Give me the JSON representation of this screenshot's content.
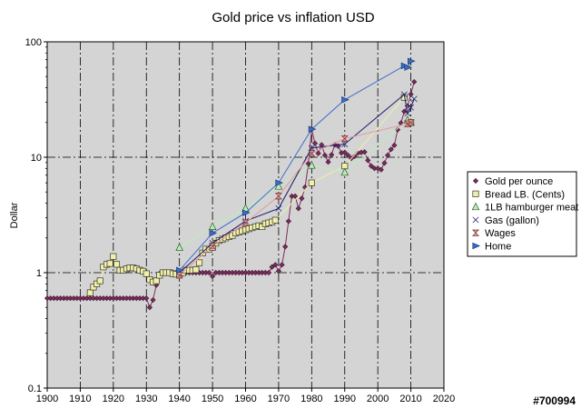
{
  "watermark": "#700994",
  "chart_data": {
    "type": "line",
    "title": "Gold price vs inflation USD",
    "xlabel": "",
    "ylabel": "Dollar",
    "y_scale": "log",
    "xlim": [
      1900,
      2020
    ],
    "ylim": [
      0.1,
      100
    ],
    "x_ticks": [
      1900,
      1910,
      1920,
      1930,
      1940,
      1950,
      1960,
      1970,
      1980,
      1990,
      2000,
      2010,
      2020
    ],
    "y_ticks": [
      0.1,
      1,
      10,
      100
    ],
    "y_tick_labels": [
      "0.1",
      "1",
      "10",
      "100"
    ],
    "grid": true,
    "plot_background": "#d4d4d4",
    "legend_position": "right",
    "series": [
      {
        "name": "Gold per ounce",
        "color": "#7b2d5e",
        "marker": "diamond",
        "points": [
          [
            1900,
            0.6
          ],
          [
            1901,
            0.6
          ],
          [
            1902,
            0.6
          ],
          [
            1903,
            0.6
          ],
          [
            1904,
            0.6
          ],
          [
            1905,
            0.6
          ],
          [
            1906,
            0.6
          ],
          [
            1907,
            0.6
          ],
          [
            1908,
            0.6
          ],
          [
            1909,
            0.6
          ],
          [
            1910,
            0.6
          ],
          [
            1911,
            0.6
          ],
          [
            1912,
            0.6
          ],
          [
            1913,
            0.6
          ],
          [
            1914,
            0.6
          ],
          [
            1915,
            0.6
          ],
          [
            1916,
            0.6
          ],
          [
            1917,
            0.6
          ],
          [
            1918,
            0.6
          ],
          [
            1919,
            0.6
          ],
          [
            1920,
            0.6
          ],
          [
            1921,
            0.6
          ],
          [
            1922,
            0.6
          ],
          [
            1923,
            0.6
          ],
          [
            1924,
            0.6
          ],
          [
            1925,
            0.6
          ],
          [
            1926,
            0.6
          ],
          [
            1927,
            0.6
          ],
          [
            1928,
            0.6
          ],
          [
            1929,
            0.6
          ],
          [
            1930,
            0.6
          ],
          [
            1931,
            0.5
          ],
          [
            1932,
            0.58
          ],
          [
            1933,
            0.78
          ],
          [
            1934,
            0.98
          ],
          [
            1935,
            1.0
          ],
          [
            1936,
            1.0
          ],
          [
            1937,
            1.0
          ],
          [
            1938,
            1.0
          ],
          [
            1939,
            1.0
          ],
          [
            1940,
            1.0
          ],
          [
            1941,
            1.0
          ],
          [
            1942,
            1.0
          ],
          [
            1943,
            1.0
          ],
          [
            1944,
            1.0
          ],
          [
            1945,
            1.0
          ],
          [
            1946,
            1.0
          ],
          [
            1947,
            1.0
          ],
          [
            1948,
            1.0
          ],
          [
            1949,
            1.0
          ],
          [
            1950,
            0.93
          ],
          [
            1951,
            1.0
          ],
          [
            1952,
            1.0
          ],
          [
            1953,
            1.0
          ],
          [
            1954,
            1.0
          ],
          [
            1955,
            1.0
          ],
          [
            1956,
            1.0
          ],
          [
            1957,
            1.0
          ],
          [
            1958,
            1.0
          ],
          [
            1959,
            1.0
          ],
          [
            1960,
            1.0
          ],
          [
            1961,
            1.0
          ],
          [
            1962,
            1.0
          ],
          [
            1963,
            1.0
          ],
          [
            1964,
            1.0
          ],
          [
            1965,
            1.0
          ],
          [
            1966,
            1.0
          ],
          [
            1967,
            1.0
          ],
          [
            1968,
            1.12
          ],
          [
            1969,
            1.17
          ],
          [
            1970,
            1.03
          ],
          [
            1971,
            1.17
          ],
          [
            1972,
            1.68
          ],
          [
            1973,
            2.79
          ],
          [
            1974,
            4.6
          ],
          [
            1975,
            4.6
          ],
          [
            1976,
            3.6
          ],
          [
            1977,
            4.4
          ],
          [
            1978,
            5.5
          ],
          [
            1979,
            8.8
          ],
          [
            1980,
            17.5
          ],
          [
            1981,
            13.2
          ],
          [
            1982,
            10.8
          ],
          [
            1983,
            12.8
          ],
          [
            1984,
            10.4
          ],
          [
            1985,
            9.1
          ],
          [
            1986,
            10.5
          ],
          [
            1987,
            12.8
          ],
          [
            1988,
            12.5
          ],
          [
            1989,
            10.9
          ],
          [
            1990,
            11.0
          ],
          [
            1991,
            10.4
          ],
          [
            1992,
            9.8
          ],
          [
            1993,
            10.2
          ],
          [
            1994,
            10.9
          ],
          [
            1995,
            11.0
          ],
          [
            1996,
            11.1
          ],
          [
            1997,
            9.4
          ],
          [
            1998,
            8.4
          ],
          [
            1999,
            8.0
          ],
          [
            2000,
            8.0
          ],
          [
            2001,
            7.8
          ],
          [
            2002,
            8.9
          ],
          [
            2003,
            10.4
          ],
          [
            2004,
            11.7
          ],
          [
            2005,
            12.7
          ],
          [
            2006,
            17.3
          ],
          [
            2007,
            19.8
          ],
          [
            2008,
            24.9
          ],
          [
            2009,
            27.8
          ],
          [
            2010,
            35.1
          ],
          [
            2011,
            45.0
          ]
        ]
      },
      {
        "name": "Bread LB. (Cents)",
        "color": "#f0f0a8",
        "marker": "square",
        "points": [
          [
            1913,
            0.67
          ],
          [
            1914,
            0.75
          ],
          [
            1915,
            0.8
          ],
          [
            1916,
            0.85
          ],
          [
            1917,
            1.12
          ],
          [
            1918,
            1.18
          ],
          [
            1919,
            1.2
          ],
          [
            1920,
            1.38
          ],
          [
            1921,
            1.18
          ],
          [
            1922,
            1.05
          ],
          [
            1923,
            1.05
          ],
          [
            1924,
            1.08
          ],
          [
            1925,
            1.1
          ],
          [
            1926,
            1.1
          ],
          [
            1927,
            1.08
          ],
          [
            1928,
            1.05
          ],
          [
            1929,
            1.03
          ],
          [
            1930,
            0.98
          ],
          [
            1931,
            0.87
          ],
          [
            1932,
            0.83
          ],
          [
            1933,
            0.85
          ],
          [
            1934,
            0.95
          ],
          [
            1935,
            1.0
          ],
          [
            1936,
            1.0
          ],
          [
            1937,
            1.0
          ],
          [
            1938,
            0.98
          ],
          [
            1939,
            0.97
          ],
          [
            1940,
            0.97
          ],
          [
            1941,
            1.0
          ],
          [
            1942,
            1.05
          ],
          [
            1943,
            1.05
          ],
          [
            1944,
            1.05
          ],
          [
            1945,
            1.06
          ],
          [
            1946,
            1.22
          ],
          [
            1947,
            1.48
          ],
          [
            1948,
            1.6
          ],
          [
            1949,
            1.6
          ],
          [
            1950,
            1.65
          ],
          [
            1951,
            1.8
          ],
          [
            1952,
            1.9
          ],
          [
            1953,
            1.95
          ],
          [
            1954,
            2.0
          ],
          [
            1955,
            2.05
          ],
          [
            1956,
            2.1
          ],
          [
            1957,
            2.2
          ],
          [
            1958,
            2.25
          ],
          [
            1959,
            2.3
          ],
          [
            1960,
            2.35
          ],
          [
            1961,
            2.4
          ],
          [
            1962,
            2.45
          ],
          [
            1963,
            2.5
          ],
          [
            1964,
            2.55
          ],
          [
            1965,
            2.5
          ],
          [
            1966,
            2.65
          ],
          [
            1967,
            2.7
          ],
          [
            1968,
            2.75
          ],
          [
            1969,
            2.85
          ],
          [
            1980,
            6.0
          ],
          [
            1990,
            8.4
          ],
          [
            2008,
            33.0
          ],
          [
            2010,
            20.0
          ]
        ]
      },
      {
        "name": "1LB hamburger meat",
        "color": "#b8f0b8",
        "marker": "triangle",
        "points": [
          [
            1940,
            1.65
          ],
          [
            1950,
            2.5
          ],
          [
            1960,
            3.6
          ],
          [
            1970,
            5.6
          ],
          [
            1980,
            8.5
          ],
          [
            1990,
            7.4
          ],
          [
            2009,
            21.0
          ],
          [
            2010,
            20.0
          ]
        ]
      },
      {
        "name": "Gas (gallon)",
        "color": "#1a1a6e",
        "marker": "bowtie",
        "points": [
          [
            1940,
            1.0
          ],
          [
            1950,
            1.8
          ],
          [
            1960,
            2.8
          ],
          [
            1970,
            3.6
          ],
          [
            1980,
            12.0
          ],
          [
            1990,
            13.0
          ],
          [
            2008,
            35.0
          ],
          [
            2009,
            24.0
          ],
          [
            2010,
            27.0
          ],
          [
            2011,
            32.0
          ]
        ]
      },
      {
        "name": "Wages",
        "color": "#e89898",
        "marker": "hourglass",
        "points": [
          [
            1940,
            0.95
          ],
          [
            1950,
            1.7
          ],
          [
            1960,
            2.7
          ],
          [
            1970,
            4.6
          ],
          [
            1980,
            10.8
          ],
          [
            1990,
            14.5
          ],
          [
            2009,
            19.5
          ],
          [
            2010,
            20.0
          ]
        ]
      },
      {
        "name": "Home",
        "color": "#3a6ec8",
        "marker": "triangle-right",
        "points": [
          [
            1940,
            1.05
          ],
          [
            1950,
            2.2
          ],
          [
            1960,
            3.3
          ],
          [
            1970,
            6.0
          ],
          [
            1980,
            17.5
          ],
          [
            1990,
            31.5
          ],
          [
            2008,
            62.0
          ],
          [
            2009,
            60.0
          ],
          [
            2010,
            68.0
          ]
        ]
      }
    ]
  }
}
